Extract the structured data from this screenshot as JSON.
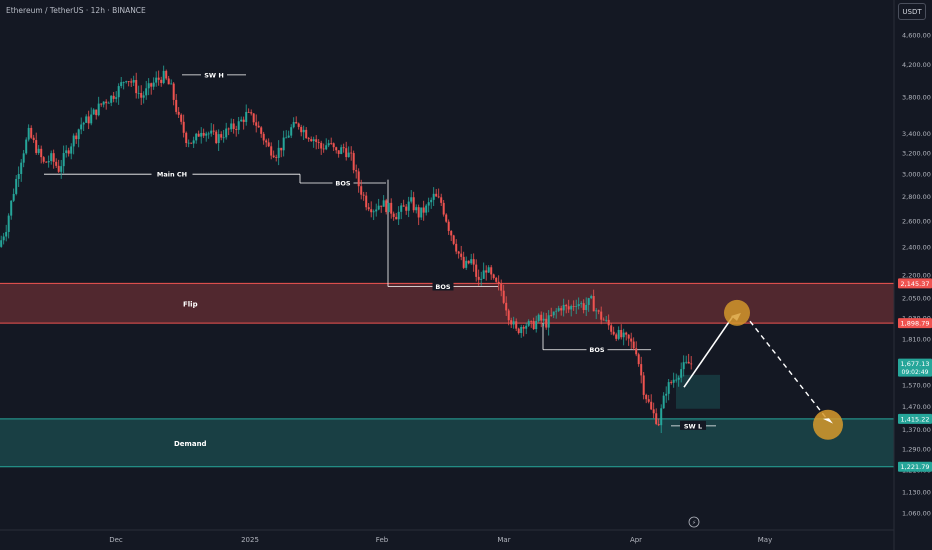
{
  "header": {
    "symbol": "Ethereum / TetherUS · 12h · BINANCE"
  },
  "currency_label": "USDT",
  "colors": {
    "background": "#141823",
    "up": "#26a69a",
    "down": "#ef5350",
    "flip_zone": "#ef5350",
    "demand_zone": "#26a69a",
    "arrow": "#ffffff",
    "circle": "#d79a2b"
  },
  "chart_data": {
    "type": "candlestick",
    "title": "",
    "y_axis": {
      "scale": "log",
      "range": [
        1000,
        4950
      ],
      "tick_labels": [
        "4,600.00",
        "4,200.00",
        "3,800.00",
        "3,400.00",
        "3,200.00",
        "3,000.00",
        "2,800.00",
        "2,600.00",
        "2,400.00",
        "2,200.00",
        "2,050.00",
        "1,930.00",
        "1,810.00",
        "1,690.00",
        "1,570.00",
        "1,470.00",
        "1,370.00",
        "1,290.00",
        "1,210.00",
        "1,130.00",
        "1,060.00"
      ]
    },
    "x_axis": {
      "tick_labels": [
        "Dec",
        "2025",
        "Feb",
        "Mar",
        "Apr",
        "May"
      ]
    },
    "price_badges": [
      {
        "label": "2,145.37",
        "value": 2145.37,
        "color": "#ef5350"
      },
      {
        "label": "1,898.79",
        "value": 1898.79,
        "color": "#ef5350"
      },
      {
        "label": "1,677.13",
        "value": 1677.13,
        "color": "#26a69a",
        "sublabel": "09:02:49"
      },
      {
        "label": "1,415.22",
        "value": 1415.22,
        "color": "#26a69a"
      },
      {
        "label": "1,221.79",
        "value": 1221.79,
        "color": "#26a69a"
      }
    ],
    "zones": [
      {
        "label": "Flip",
        "top": 2145.37,
        "bottom": 1898.79,
        "color": "#ef5350"
      },
      {
        "label": "Demand",
        "top": 1415.22,
        "bottom": 1221.79,
        "color": "#26a69a"
      }
    ],
    "annotations": [
      {
        "label": "SW H",
        "value": 4070
      },
      {
        "label": "Main CH",
        "value": 3000
      },
      {
        "label": "BOS",
        "value": 2920
      },
      {
        "label": "BOS",
        "value": 2125
      },
      {
        "label": "BOS",
        "value": 1750
      },
      {
        "label": "SW L",
        "value": 1385
      }
    ],
    "price_path": [
      [
        0,
        2400
      ],
      [
        3,
        2550
      ],
      [
        6,
        2850
      ],
      [
        9,
        3150
      ],
      [
        12,
        3400
      ],
      [
        15,
        3250
      ],
      [
        18,
        3100
      ],
      [
        21,
        3150
      ],
      [
        24,
        3050
      ],
      [
        27,
        3200
      ],
      [
        30,
        3350
      ],
      [
        33,
        3500
      ],
      [
        36,
        3550
      ],
      [
        39,
        3650
      ],
      [
        42,
        3750
      ],
      [
        45,
        3800
      ],
      [
        48,
        3900
      ],
      [
        51,
        4050
      ],
      [
        54,
        3950
      ],
      [
        57,
        3800
      ],
      [
        60,
        3900
      ],
      [
        63,
        4000
      ],
      [
        66,
        4050
      ],
      [
        69,
        3900
      ],
      [
        72,
        3550
      ],
      [
        75,
        3350
      ],
      [
        78,
        3300
      ],
      [
        81,
        3450
      ],
      [
        84,
        3400
      ],
      [
        87,
        3350
      ],
      [
        90,
        3400
      ],
      [
        93,
        3450
      ],
      [
        96,
        3500
      ],
      [
        99,
        3600
      ],
      [
        102,
        3550
      ],
      [
        105,
        3400
      ],
      [
        108,
        3250
      ],
      [
        111,
        3200
      ],
      [
        114,
        3300
      ],
      [
        117,
        3450
      ],
      [
        120,
        3500
      ],
      [
        123,
        3400
      ],
      [
        126,
        3350
      ],
      [
        129,
        3250
      ],
      [
        132,
        3300
      ],
      [
        135,
        3200
      ],
      [
        138,
        3250
      ],
      [
        141,
        3150
      ],
      [
        144,
        2900
      ],
      [
        147,
        2750
      ],
      [
        150,
        2700
      ],
      [
        153,
        2750
      ],
      [
        156,
        2700
      ],
      [
        159,
        2650
      ],
      [
        162,
        2700
      ],
      [
        165,
        2750
      ],
      [
        168,
        2650
      ],
      [
        171,
        2700
      ],
      [
        174,
        2800
      ],
      [
        177,
        2750
      ],
      [
        180,
        2550
      ],
      [
        183,
        2400
      ],
      [
        186,
        2250
      ],
      [
        189,
        2300
      ],
      [
        192,
        2150
      ],
      [
        195,
        2250
      ],
      [
        198,
        2150
      ],
      [
        201,
        2100
      ],
      [
        204,
        1950
      ],
      [
        207,
        1850
      ],
      [
        210,
        1900
      ],
      [
        213,
        1880
      ],
      [
        216,
        1920
      ],
      [
        219,
        1900
      ],
      [
        222,
        1950
      ],
      [
        225,
        2000
      ],
      [
        228,
        1980
      ],
      [
        231,
        2030
      ],
      [
        234,
        2000
      ],
      [
        237,
        2030
      ],
      [
        240,
        1950
      ],
      [
        243,
        1900
      ],
      [
        246,
        1850
      ],
      [
        249,
        1820
      ],
      [
        252,
        1800
      ],
      [
        255,
        1750
      ],
      [
        258,
        1550
      ],
      [
        261,
        1450
      ],
      [
        264,
        1400
      ],
      [
        267,
        1550
      ],
      [
        270,
        1600
      ],
      [
        273,
        1650
      ],
      [
        276,
        1677
      ]
    ]
  }
}
